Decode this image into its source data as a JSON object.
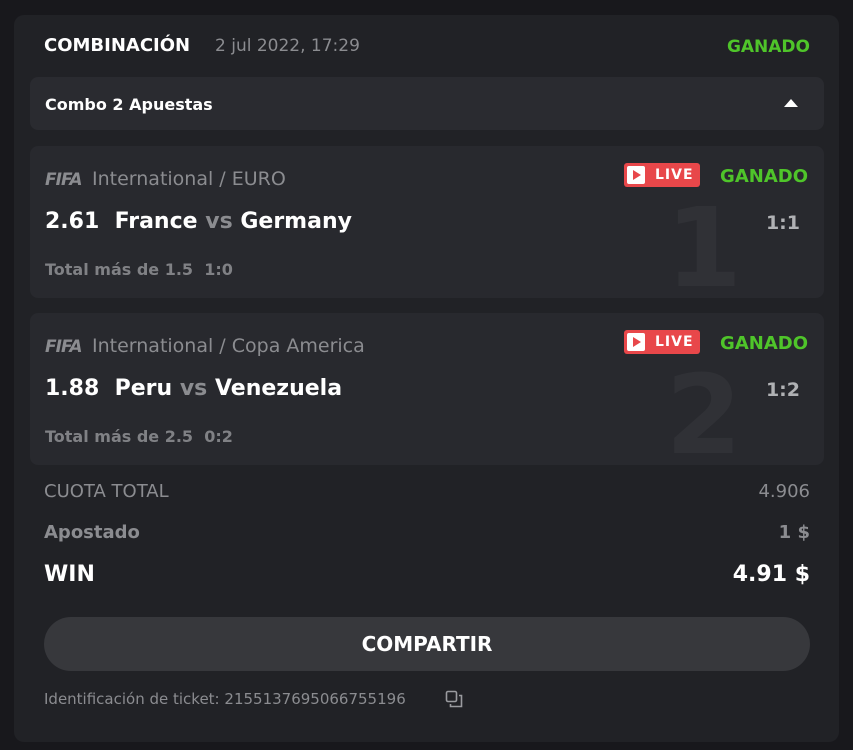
{
  "header": {
    "title": "COMBINACIÓN",
    "date": "2 jul 2022, 17:29",
    "status": "GANADO"
  },
  "combo": {
    "label": "Combo 2 Apuestas"
  },
  "bets": [
    {
      "index": "1",
      "sport_logo": "FIFA",
      "league": "International / EURO",
      "live": "LIVE",
      "status": "GANADO",
      "odds": "2.61",
      "home": "France",
      "vs": "vs",
      "away": "Germany",
      "score": "1:1",
      "market": "Total más de 1.5",
      "market_score": "1:0"
    },
    {
      "index": "2",
      "sport_logo": "FIFA",
      "league": "International / Copa America",
      "live": "LIVE",
      "status": "GANADO",
      "odds": "1.88",
      "home": "Peru",
      "vs": "vs",
      "away": "Venezuela",
      "score": "1:2",
      "market": "Total más de 2.5",
      "market_score": "0:2"
    }
  ],
  "summary": {
    "total_odds_label": "CUOTA TOTAL",
    "total_odds": "4.906",
    "staked_label": "Apostado",
    "staked": "1 $",
    "win_label": "WIN",
    "win": "4.91 $"
  },
  "share_label": "COMPARTIR",
  "ticket": {
    "label": "Identificación de ticket:",
    "id": "2155137695066755196"
  },
  "colors": {
    "win_green": "#4fc52a",
    "live_red": "#e8474a"
  }
}
